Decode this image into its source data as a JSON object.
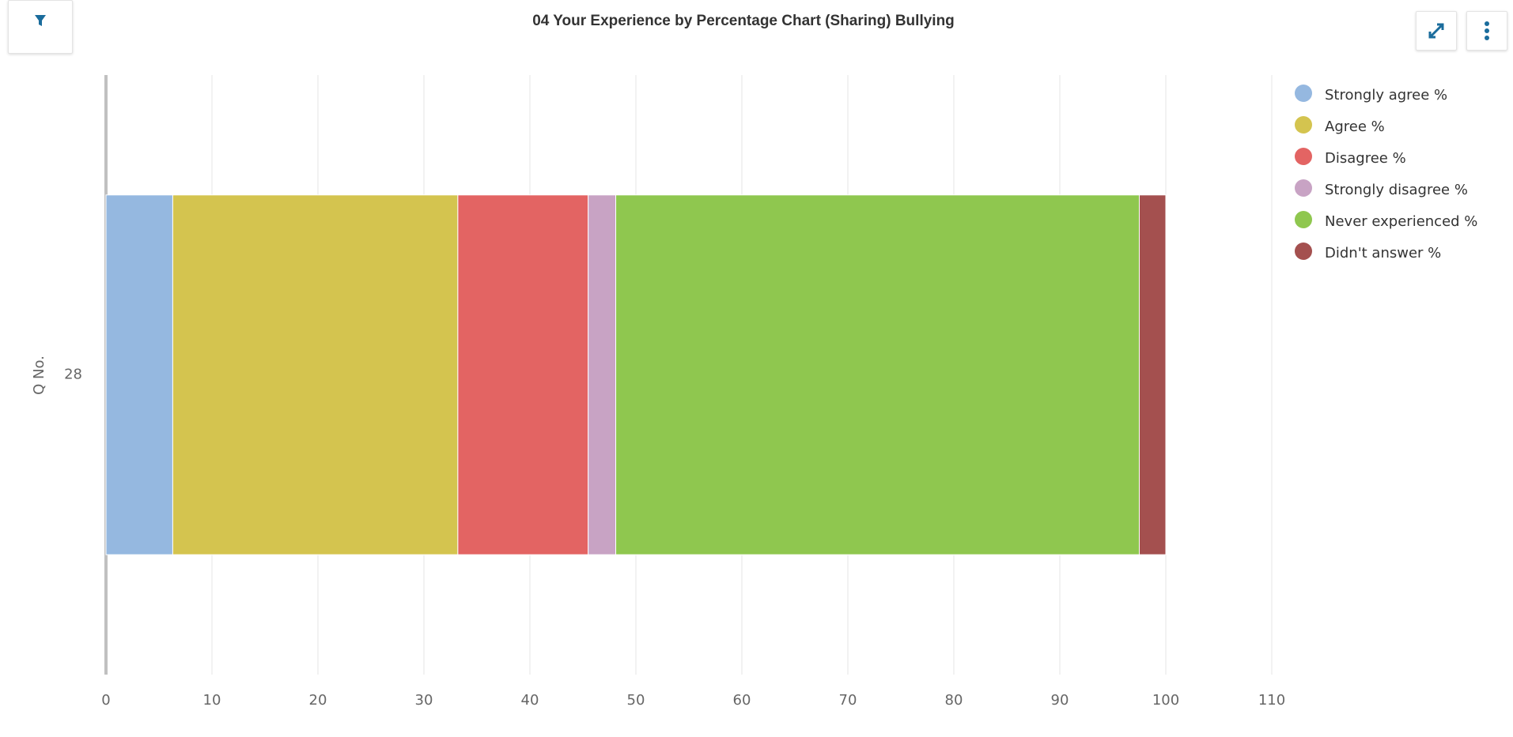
{
  "chart_data": {
    "type": "stacked-barh",
    "title": "04 Your Experience by Percentage Chart (Sharing) Bullying",
    "y_label": "Q No.",
    "categories": [
      "28"
    ],
    "series": [
      {
        "name": "Strongly agree %",
        "color": "#95b8e0",
        "values": [
          6.3
        ]
      },
      {
        "name": "Agree %",
        "color": "#d4c44f",
        "values": [
          26.9
        ]
      },
      {
        "name": "Disagree %",
        "color": "#e36463",
        "values": [
          12.3
        ]
      },
      {
        "name": "Strongly disagree %",
        "color": "#c8a3c4",
        "values": [
          2.6
        ]
      },
      {
        "name": "Never experienced %",
        "color": "#8fc74f",
        "values": [
          49.4
        ]
      },
      {
        "name": "Didn't answer %",
        "color": "#a4504f",
        "values": [
          2.5
        ]
      }
    ],
    "xlim": [
      0,
      110
    ],
    "xticks": [
      0,
      10,
      20,
      30,
      40,
      50,
      60,
      70,
      80,
      90,
      100,
      110
    ],
    "grid": true,
    "legend": "right"
  }
}
